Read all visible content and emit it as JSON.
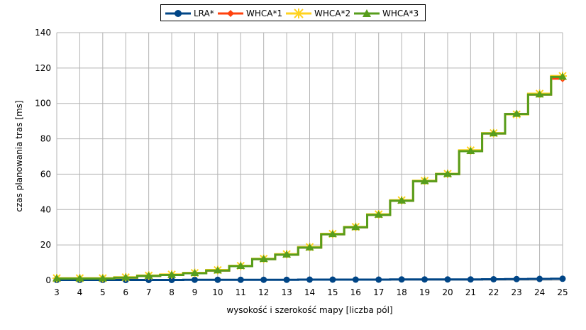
{
  "chart_data": {
    "type": "line",
    "step": true,
    "title": "",
    "xlabel": "wysokość i szerokość mapy [liczba pól]",
    "ylabel": "czas planowania tras [ms]",
    "categories": [
      "3",
      "4",
      "5",
      "6",
      "7",
      "8",
      "9",
      "10",
      "11",
      "12",
      "13",
      "14",
      "15",
      "16",
      "17",
      "18",
      "19",
      "20",
      "21",
      "22",
      "23",
      "24",
      "25"
    ],
    "ylim": [
      0,
      140
    ],
    "yticks": [
      0,
      20,
      40,
      60,
      80,
      100,
      120,
      140
    ],
    "grid": true,
    "legend_position": "top-center",
    "series": [
      {
        "name": "LRA*",
        "color": "#004586",
        "marker": "circle",
        "values": [
          0.2,
          0.2,
          0.2,
          0.2,
          0.2,
          0.2,
          0.3,
          0.3,
          0.3,
          0.3,
          0.3,
          0.4,
          0.4,
          0.4,
          0.4,
          0.5,
          0.5,
          0.5,
          0.5,
          0.6,
          0.7,
          0.8,
          0.9
        ]
      },
      {
        "name": "WHCA*1",
        "color": "#ff420e",
        "marker": "diamond",
        "values": [
          1,
          1,
          1,
          1.5,
          2.5,
          3,
          4,
          5.5,
          8,
          12,
          14.5,
          18.5,
          26,
          30,
          37,
          45,
          56,
          60,
          73,
          83,
          94,
          105,
          114
        ]
      },
      {
        "name": "WHCA*2",
        "color": "#ffd320",
        "marker": "star",
        "values": [
          1.2,
          1.2,
          1.2,
          1.7,
          2.7,
          3.3,
          4.2,
          5.8,
          8.2,
          12.2,
          14.8,
          18.8,
          26.3,
          30.2,
          37.3,
          45.3,
          56.3,
          60.2,
          73.5,
          83.2,
          93.8,
          105.5,
          115.5
        ]
      },
      {
        "name": "WHCA*3",
        "color": "#579d1c",
        "marker": "triangle",
        "values": [
          1,
          1,
          1,
          1.5,
          2.5,
          3,
          4,
          5.5,
          8,
          12,
          14.5,
          18.5,
          26,
          30,
          37,
          45,
          56,
          60,
          73,
          83,
          94,
          105,
          115
        ]
      }
    ]
  }
}
